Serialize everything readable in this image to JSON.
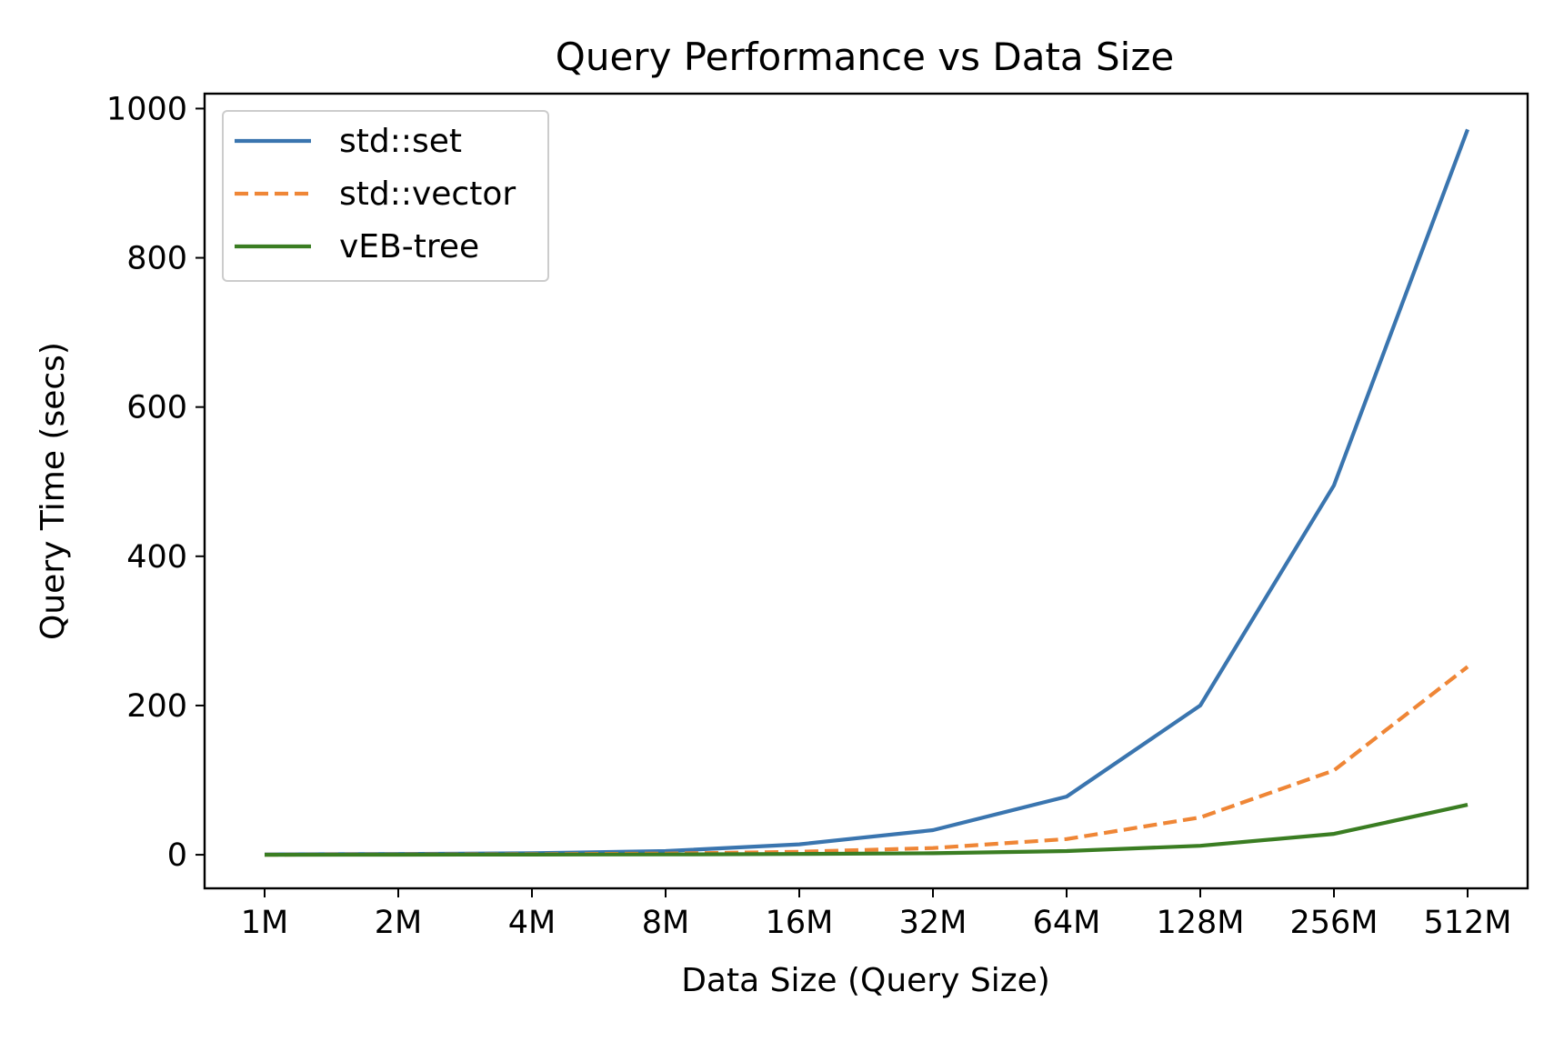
{
  "chart_data": {
    "type": "line",
    "title": "Query Performance vs Data Size",
    "xlabel": "Data Size (Query Size)",
    "ylabel": "Query Time (secs)",
    "categories": [
      "1M",
      "2M",
      "4M",
      "8M",
      "16M",
      "32M",
      "64M",
      "128M",
      "256M",
      "512M"
    ],
    "ylim": [
      -45,
      1020
    ],
    "yticks": [
      0,
      200,
      400,
      600,
      800,
      1000
    ],
    "grid": false,
    "legend_position": "top-left",
    "series": [
      {
        "name": "std::set",
        "color": "#3a75af",
        "dash": "solid",
        "values": [
          0.5,
          1,
          2,
          5,
          14,
          33,
          78,
          200,
          495,
          972
        ]
      },
      {
        "name": "std::vector",
        "color": "#ef8636",
        "dash": "dashed",
        "values": [
          0.1,
          0.3,
          0.7,
          1.5,
          4,
          9,
          21,
          50,
          113,
          252
        ]
      },
      {
        "name": "vEB-tree",
        "color": "#3a7d22",
        "dash": "solid",
        "values": [
          0,
          0.1,
          0.2,
          0.5,
          1,
          2,
          5,
          12,
          28,
          67
        ]
      }
    ]
  }
}
